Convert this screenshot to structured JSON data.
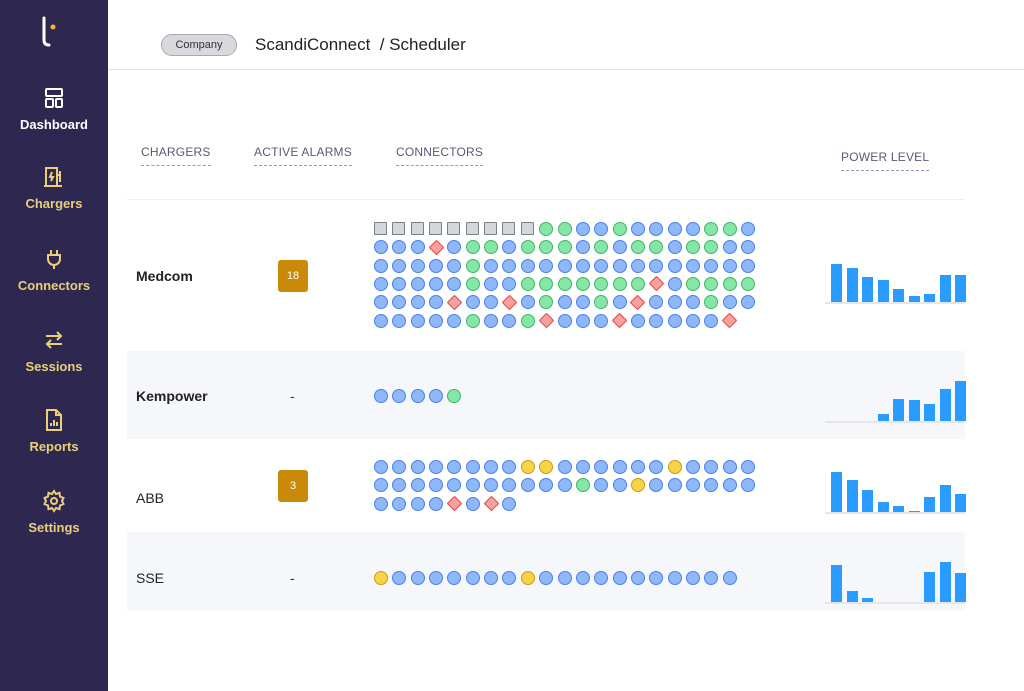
{
  "sidebar": {
    "items": [
      {
        "label": "Dashboard",
        "icon": "dashboard-icon"
      },
      {
        "label": "Chargers",
        "icon": "charger-icon"
      },
      {
        "label": "Connectors",
        "icon": "plug-icon"
      },
      {
        "label": "Sessions",
        "icon": "swap-arrows-icon"
      },
      {
        "label": "Reports",
        "icon": "report-icon"
      },
      {
        "label": "Settings",
        "icon": "gear-icon"
      }
    ]
  },
  "header": {
    "pill": "Company",
    "crumb": "ScandiConnect  / Scheduler"
  },
  "columns": {
    "chargers": "CHARGERS",
    "alarms": "ACTIVE ALARMS",
    "connectors": "CONNECTORS",
    "power": "POWER LEVEL"
  },
  "legend_codes": {
    "S": "offline-square",
    "G": "available-green",
    "B": "in-use-blue",
    "R": "fault-red-diamond",
    "Y": "warning-yellow"
  },
  "colors": {
    "sidebar": "#2e2850",
    "accent": "#e9cf7a",
    "bar": "#2a9bff",
    "badge": "#c98a0a"
  },
  "rows": [
    {
      "name": "Medcom",
      "alarms": "18",
      "connectors": [
        "SSSSSSSSSGGBBGBBBBGGB",
        "BBBRBGGBGGGBGBGGBGGBB",
        "BBBBBGBBBBBBBBBBBBBBB",
        "BBBBBGBBGGGGGGGRBGGGG",
        "BBBBRBBRBGBBGBRBBBGBB",
        "BBBBBGBBGRBBBRBBBBBR"
      ],
      "power": [
        95,
        85,
        62,
        55,
        32,
        15,
        20,
        68,
        68
      ]
    },
    {
      "name": "Kempower",
      "alarms": "-",
      "connectors": [
        "BBBBG"
      ],
      "power": [
        0,
        0,
        0,
        18,
        55,
        53,
        42,
        80,
        100
      ]
    },
    {
      "name": "ABB",
      "alarms": "3",
      "connectors": [
        "BBBBBBBBYYBBBBBBYBBBB",
        "BBBBBBBBBBBGBBYBBBBBB",
        "BBBBRBRB"
      ],
      "power": [
        100,
        79,
        56,
        26,
        14,
        2,
        37,
        67,
        44
      ]
    },
    {
      "name": "SSE",
      "alarms": "-",
      "connectors": [
        "YBBBBBBBYBBBBBBBBBBB"
      ],
      "power": [
        93,
        28,
        9,
        0,
        0,
        0,
        74,
        100,
        72
      ]
    }
  ]
}
